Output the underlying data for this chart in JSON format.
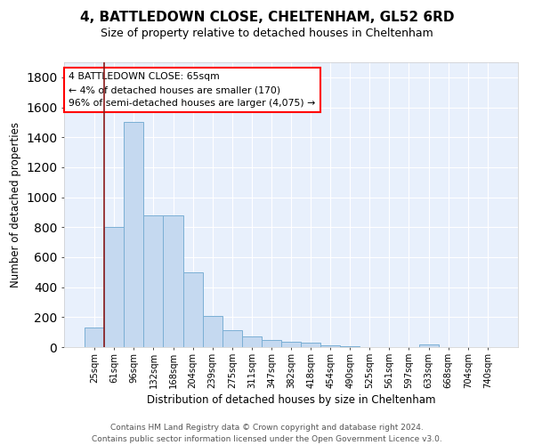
{
  "title": "4, BATTLEDOWN CLOSE, CHELTENHAM, GL52 6RD",
  "subtitle": "Size of property relative to detached houses in Cheltenham",
  "xlabel": "Distribution of detached houses by size in Cheltenham",
  "ylabel": "Number of detached properties",
  "bar_color": "#c5d9f0",
  "bar_edge_color": "#7bafd4",
  "background_color": "#e8f0fc",
  "grid_color": "#ffffff",
  "categories": [
    "25sqm",
    "61sqm",
    "96sqm",
    "132sqm",
    "168sqm",
    "204sqm",
    "239sqm",
    "275sqm",
    "311sqm",
    "347sqm",
    "382sqm",
    "418sqm",
    "454sqm",
    "490sqm",
    "525sqm",
    "561sqm",
    "597sqm",
    "633sqm",
    "668sqm",
    "704sqm",
    "740sqm"
  ],
  "values": [
    130,
    800,
    1500,
    880,
    880,
    500,
    205,
    110,
    70,
    50,
    35,
    27,
    12,
    3,
    2,
    2,
    1,
    20,
    1,
    1,
    1
  ],
  "vline_pos": 0.5,
  "vline_color": "#8b1a1a",
  "annotation_text": "4 BATTLEDOWN CLOSE: 65sqm\n← 4% of detached houses are smaller (170)\n96% of semi-detached houses are larger (4,075) →",
  "annotation_box_color": "white",
  "annotation_box_edge_color": "red",
  "footnote": "Contains HM Land Registry data © Crown copyright and database right 2024.\nContains public sector information licensed under the Open Government Licence v3.0.",
  "ylim": [
    0,
    1900
  ],
  "yticks": [
    0,
    200,
    400,
    600,
    800,
    1000,
    1200,
    1400,
    1600,
    1800
  ]
}
